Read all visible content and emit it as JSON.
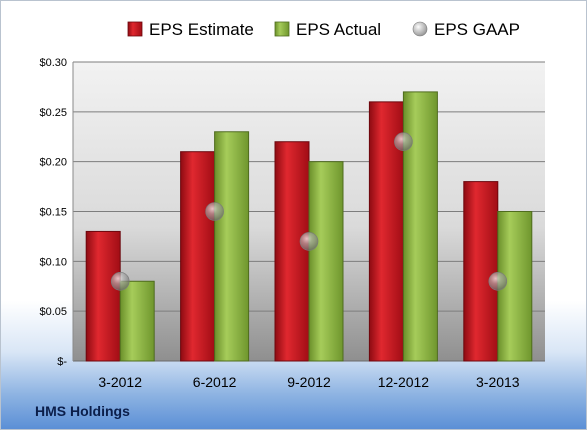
{
  "chart_data": {
    "type": "bar",
    "categories": [
      "3-2012",
      "6-2012",
      "9-2012",
      "12-2012",
      "3-2013"
    ],
    "series": [
      {
        "name": "EPS Estimate",
        "values": [
          0.13,
          0.21,
          0.22,
          0.26,
          0.18
        ],
        "color": "#c0101c"
      },
      {
        "name": "EPS Actual",
        "values": [
          0.08,
          0.23,
          0.2,
          0.27,
          0.15
        ],
        "color": "#8db63c"
      },
      {
        "name": "EPS GAAP",
        "values": [
          0.08,
          0.15,
          0.12,
          0.22,
          0.08
        ],
        "color": "#a8a8a8",
        "marker": "sphere"
      }
    ],
    "ylim": [
      0,
      0.3
    ],
    "yticks": [
      {
        "value": 0.3,
        "label": "$0.30"
      },
      {
        "value": 0.25,
        "label": "$0.25"
      },
      {
        "value": 0.2,
        "label": "$0.20"
      },
      {
        "value": 0.15,
        "label": "$0.15"
      },
      {
        "value": 0.1,
        "label": "$0.10"
      },
      {
        "value": 0.05,
        "label": "$0.05"
      },
      {
        "value": 0,
        "label": "$-"
      }
    ],
    "grid": true,
    "legend_position": "top",
    "footer": "HMS Holdings"
  }
}
